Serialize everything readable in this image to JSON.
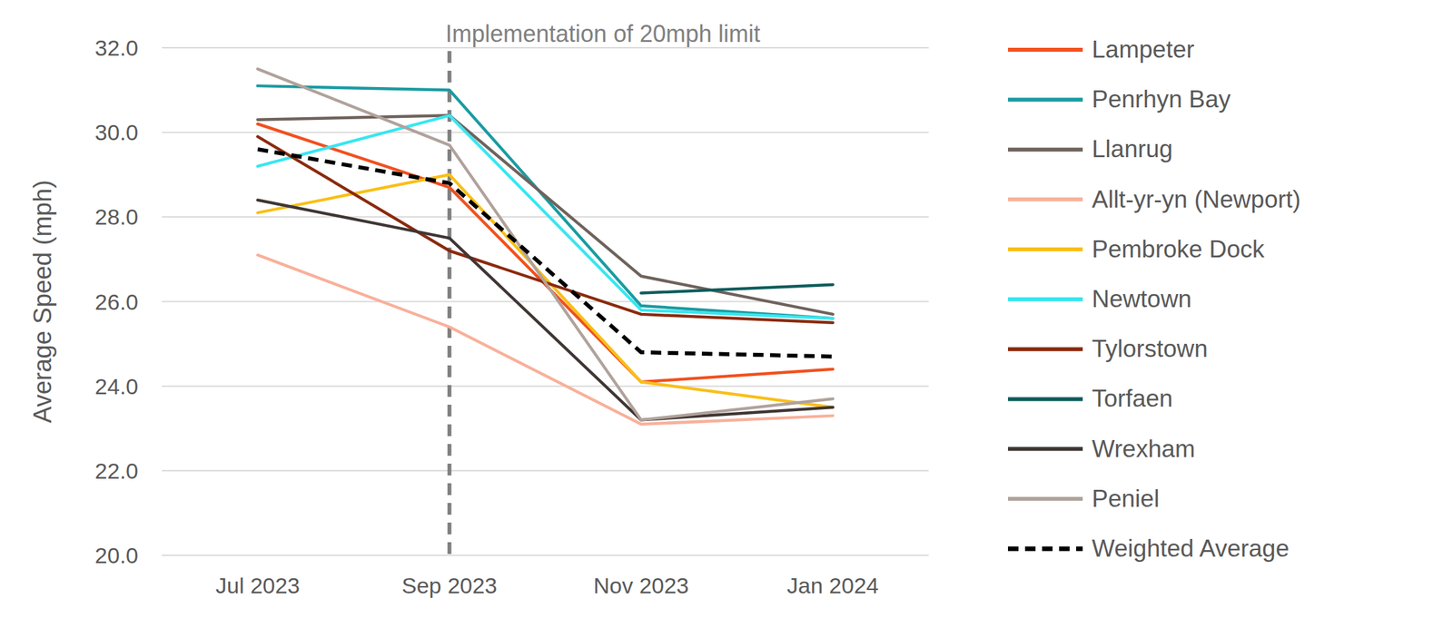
{
  "chart_data": {
    "type": "line",
    "y_label": "Average Speed (mph)",
    "categories": [
      "Jul 2023",
      "Sep 2023",
      "Nov 2023",
      "Jan 2024"
    ],
    "ylim": [
      20,
      32
    ],
    "yticks": [
      {
        "value": 20,
        "label": "20.0"
      },
      {
        "value": 22,
        "label": "22.0"
      },
      {
        "value": 24,
        "label": "24.0"
      },
      {
        "value": 26,
        "label": "26.0"
      },
      {
        "value": 28,
        "label": "28.0"
      },
      {
        "value": 30,
        "label": "30.0"
      },
      {
        "value": 32,
        "label": "32.0"
      }
    ],
    "grid": true,
    "legend": "right",
    "annotations": [
      {
        "text": "Implementation of 20mph limit",
        "x": "Sep 2023"
      }
    ],
    "series": [
      {
        "name": "Lampeter",
        "color": "#f2501e",
        "values": [
          30.2,
          28.7,
          24.1,
          24.4
        ]
      },
      {
        "name": "Penrhyn Bay",
        "color": "#1a9ba1",
        "values": [
          31.1,
          31.0,
          25.9,
          25.6
        ]
      },
      {
        "name": "Llanrug",
        "color": "#6f625c",
        "values": [
          30.3,
          30.4,
          26.6,
          25.7
        ]
      },
      {
        "name": "Allt-yr-yn (Newport)",
        "color": "#f9b09a",
        "values": [
          27.1,
          25.4,
          23.1,
          23.3
        ]
      },
      {
        "name": "Pembroke Dock",
        "color": "#f9bf16",
        "values": [
          28.1,
          29.0,
          24.1,
          23.5
        ]
      },
      {
        "name": "Newtown",
        "color": "#38e6f0",
        "values": [
          29.2,
          30.4,
          25.8,
          25.6
        ]
      },
      {
        "name": "Tylorstown",
        "color": "#8b2a0e",
        "values": [
          29.9,
          27.2,
          25.7,
          25.5
        ]
      },
      {
        "name": "Torfaen",
        "color": "#0f5c5c",
        "values": [
          null,
          null,
          26.2,
          26.4
        ]
      },
      {
        "name": "Wrexham",
        "color": "#3f3634",
        "values": [
          28.4,
          27.5,
          23.2,
          23.5
        ]
      },
      {
        "name": "Peniel",
        "color": "#b0a29b",
        "values": [
          31.5,
          29.7,
          23.2,
          23.7
        ]
      },
      {
        "name": "Weighted Average",
        "color": "#000000",
        "line_style": "dashed",
        "values": [
          29.6,
          28.8,
          24.8,
          24.7
        ]
      }
    ]
  }
}
